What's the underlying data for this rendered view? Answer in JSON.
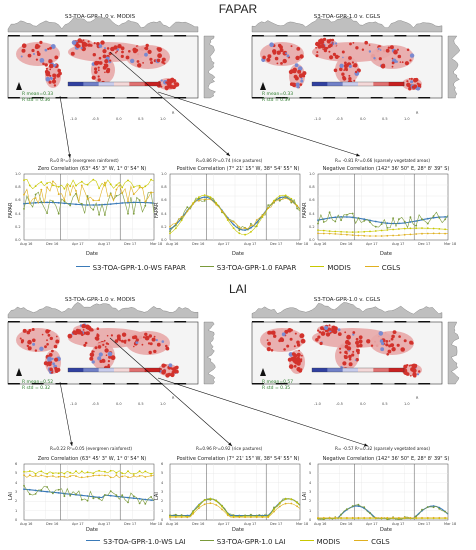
{
  "fapar": {
    "title": "FAPAR",
    "map_left": {
      "title": "S3-TOA-GPR-1.0 v. MODIS",
      "stat1": "R mean=0.33",
      "stat2": "R std = 0.36"
    },
    "map_right": {
      "title": "S3-TOA-GPR-1.0 v. CGLS",
      "stat1": "R mean=0.33",
      "stat2": "R std = 0.39"
    },
    "colorbar_ticks": [
      "-1.0",
      "-0.5",
      "0.0",
      "0.5",
      "1.0"
    ],
    "colorbar_label": "R",
    "captions": [
      "R=0     R²=0 (evergreen rainforest)",
      "R=0.86   R²=0.74 (rice pastures)",
      "R= -0.81   R²=0.66 (sparsely vegetated areas)"
    ],
    "panels": [
      {
        "title": "Zero Correlation (63° 45' 3\" W, 1° 0' 54\" N)"
      },
      {
        "title": "Positive Correlation (7° 21' 15\" W, 38° 54' 55\" N)"
      },
      {
        "title": "Negative Correlation (142° 36' 50\" E, 28° 8' 39\" S)"
      }
    ],
    "ylabel": "FAPAR",
    "xlabel": "Date",
    "yticks": [
      "1.0",
      "0.8",
      "0.6",
      "0.4",
      "0.2",
      "0.0"
    ],
    "xticks": [
      "Aug 16",
      "Dec 16",
      "Apr 17",
      "Aug 17",
      "Dec 17",
      "Mar 18"
    ],
    "legend": [
      {
        "label": "S3-TOA-GPR-1.0-WS FAPAR",
        "color": "#3a7ab8"
      },
      {
        "label": "S3-TOA-GPR-1.0 FAPAR",
        "color": "#7a9a3a"
      },
      {
        "label": "MODIS",
        "color": "#c8c800"
      },
      {
        "label": "CGLS",
        "color": "#e0b020"
      }
    ]
  },
  "lai": {
    "title": "LAI",
    "map_left": {
      "title": "S3-TOA-GPR-1.0 v. MODIS",
      "stat1": "R mean=0.52",
      "stat2": "R std = 0.32"
    },
    "map_right": {
      "title": "S3-TOA-GPR-1.0 v. CGLS",
      "stat1": "R mean=0.57",
      "stat2": "R std = 0.35"
    },
    "colorbar_ticks": [
      "-1.0",
      "-0.5",
      "0.0",
      "0.5",
      "1.0"
    ],
    "colorbar_label": "R",
    "captions": [
      "R=0.22   R²=0.05 (evergreen rainforest)",
      "R=0.96   R²=0.92 (rice pastures)",
      "R= -0.57   R²=0.32 (sparsely vegetated areas)"
    ],
    "panels": [
      {
        "title": "Zero Correlation (63° 45' 3\" W, 1° 0' 54\" N)"
      },
      {
        "title": "Positive Correlation (7° 21' 15\" W, 38° 54' 55\" N)"
      },
      {
        "title": "Negative Correlation (142° 36' 50\" E, 28° 8' 39\" S)"
      }
    ],
    "ylabel": "LAI",
    "xlabel": "Date",
    "yticks": [
      "6",
      "5",
      "4",
      "3",
      "2",
      "1",
      "0"
    ],
    "xticks": [
      "Aug 16",
      "Dec 16",
      "Apr 17",
      "Aug 17",
      "Dec 17",
      "Mar 18"
    ],
    "legend": [
      {
        "label": "S3-TOA-GPR-1.0-WS LAI",
        "color": "#3a7ab8"
      },
      {
        "label": "S3-TOA-GPR-1.0 LAI",
        "color": "#7a9a3a"
      },
      {
        "label": "MODIS",
        "color": "#c8c800"
      },
      {
        "label": "CGLS",
        "color": "#e0b020"
      }
    ]
  }
}
